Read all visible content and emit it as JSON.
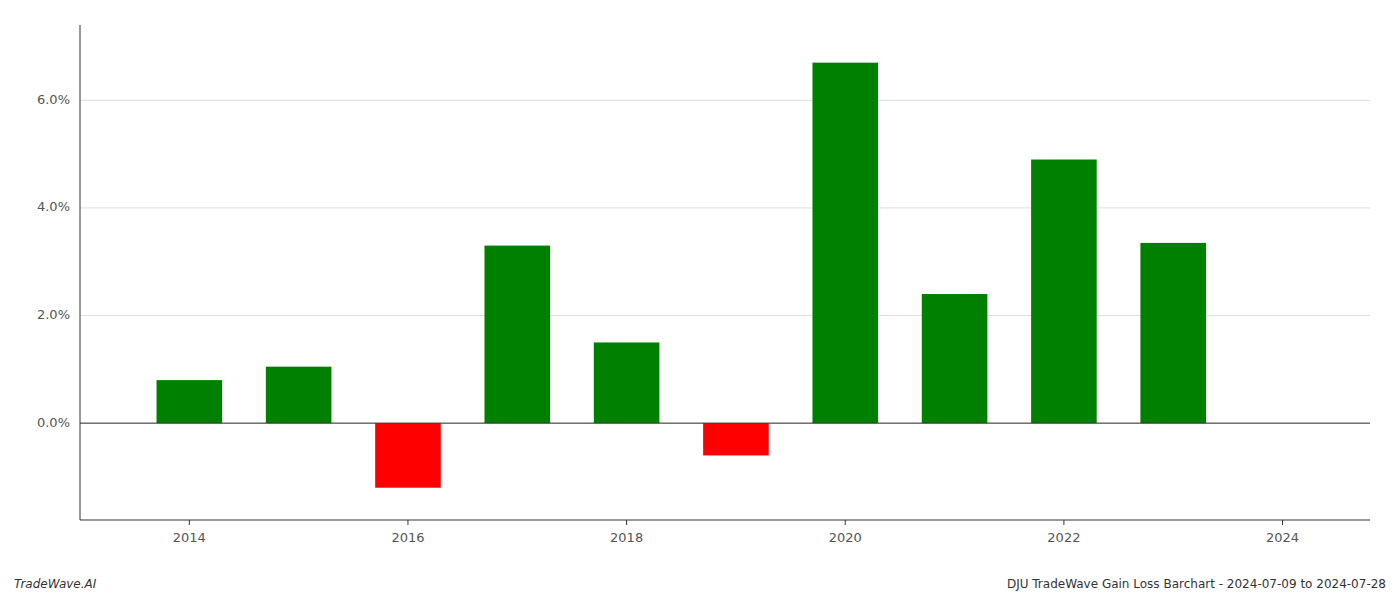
{
  "chart_data": {
    "type": "bar",
    "x": [
      2014,
      2015,
      2016,
      2017,
      2018,
      2019,
      2020,
      2021,
      2022,
      2023
    ],
    "values": [
      0.008,
      0.0105,
      -0.012,
      0.033,
      0.015,
      -0.006,
      0.067,
      0.024,
      0.049,
      0.0335
    ],
    "colors": [
      "#008000",
      "#008000",
      "#ff0000",
      "#008000",
      "#008000",
      "#ff0000",
      "#008000",
      "#008000",
      "#008000",
      "#008000"
    ],
    "xlim": [
      2013.0,
      2024.8
    ],
    "xticks": [
      2014,
      2016,
      2018,
      2020,
      2022,
      2024
    ],
    "ylim": [
      -0.018,
      0.074
    ],
    "yticks": [
      {
        "value": 0.0,
        "label": "0.0%"
      },
      {
        "value": 0.02,
        "label": "2.0%"
      },
      {
        "value": 0.04,
        "label": "4.0%"
      },
      {
        "value": 0.06,
        "label": "6.0%"
      }
    ],
    "grid": true,
    "annotations": [
      "TradeWave.AI",
      "DJU TradeWave Gain Loss Barchart - 2024-07-09 to 2024-07-28"
    ]
  }
}
